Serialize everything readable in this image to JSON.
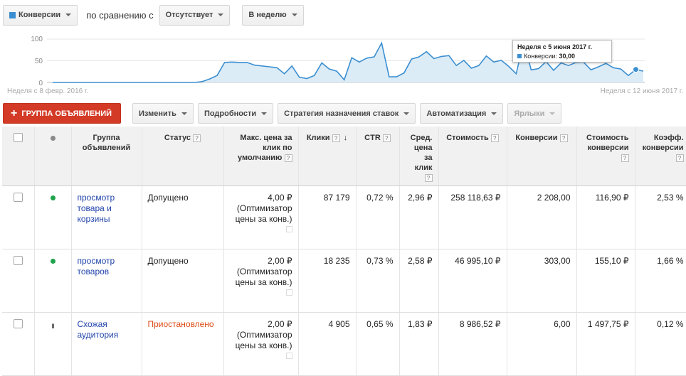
{
  "toolbar": {
    "metric_label": "Конверсии",
    "compare_text": "по сравнению с",
    "compare_value": "Отсутствует",
    "period_label": "В неделю"
  },
  "chart": {
    "y_ticks": [
      "100",
      "50",
      "0"
    ],
    "x_start_label": "Неделя с 8 февр. 2016 г.",
    "x_end_label": "Неделя с 12 июня 2017 г.",
    "tooltip_title": "Неделя с 5 июня 2017 г.",
    "tooltip_series": "Конверсии:",
    "tooltip_value": "30,00",
    "colors": {
      "line": "#3b8fd1",
      "area": "#dcecf7"
    }
  },
  "chart_data": {
    "type": "area",
    "series": [
      {
        "name": "Конверсии",
        "values": [
          0,
          0,
          0,
          0,
          0,
          0,
          0,
          0,
          0,
          0,
          0,
          0,
          0,
          0,
          0,
          0,
          0,
          0,
          0,
          0,
          2,
          8,
          16,
          46,
          47,
          46,
          46,
          40,
          38,
          36,
          34,
          20,
          38,
          12,
          9,
          16,
          45,
          31,
          26,
          6,
          57,
          47,
          56,
          59,
          91,
          13,
          13,
          22,
          54,
          59,
          71,
          55,
          60,
          62,
          39,
          51,
          33,
          39,
          61,
          47,
          51,
          37,
          20,
          95,
          29,
          32,
          48,
          28,
          45,
          39,
          46,
          47,
          29,
          36,
          44,
          34,
          31,
          16,
          30,
          26
        ]
      }
    ],
    "ylim": [
      0,
      100
    ],
    "grid": true,
    "xlabel": "",
    "ylabel": ""
  },
  "actions": {
    "add_group": "ГРУППА ОБЪЯВЛЕНИЙ",
    "edit": "Изменить",
    "details": "Подробности",
    "bid_strategy": "Стратегия назначения ставок",
    "automation": "Автоматизация",
    "labels": "Ярлыки"
  },
  "table": {
    "headers": {
      "group": "Группа объявлений",
      "status": "Статус",
      "max_cpc": "Макс. цена за клик по умолчанию",
      "clicks": "Клики",
      "ctr": "CTR",
      "avg_cpc": "Сред. цена за клик",
      "cost": "Стоимость",
      "conversions": "Конверсии",
      "cost_per_conv": "Стоимость конверсии",
      "conv_rate": "Коэфф. конверсии"
    },
    "rows": [
      {
        "group": "просмотр товара и корзины",
        "status": "Допущено",
        "max_cpc": "4,00 ₽",
        "bid_note": "(Оптимизатор цены за конв.)",
        "clicks": "87 179",
        "ctr": "0,72 %",
        "avg_cpc": "2,96 ₽",
        "cost": "258 118,63 ₽",
        "conversions": "2 208,00",
        "cost_per_conv": "116,90 ₽",
        "conv_rate": "2,53 %"
      },
      {
        "group": "просмотр товаров",
        "status": "Допущено",
        "max_cpc": "2,00 ₽",
        "bid_note": "(Оптимизатор цены за конв.)",
        "clicks": "18 235",
        "ctr": "0,73 %",
        "avg_cpc": "2,58 ₽",
        "cost": "46 995,10 ₽",
        "conversions": "303,00",
        "cost_per_conv": "155,10 ₽",
        "conv_rate": "1,66 %"
      },
      {
        "group": "Схожая аудитория",
        "status": "Приостановлено",
        "max_cpc": "2,00 ₽",
        "bid_note": "(Оптимизатор цены за конв.)",
        "clicks": "4 905",
        "ctr": "0,65 %",
        "avg_cpc": "1,83 ₽",
        "cost": "8 986,52 ₽",
        "conversions": "6,00",
        "cost_per_conv": "1 497,75 ₽",
        "conv_rate": "0,12 %"
      }
    ]
  }
}
